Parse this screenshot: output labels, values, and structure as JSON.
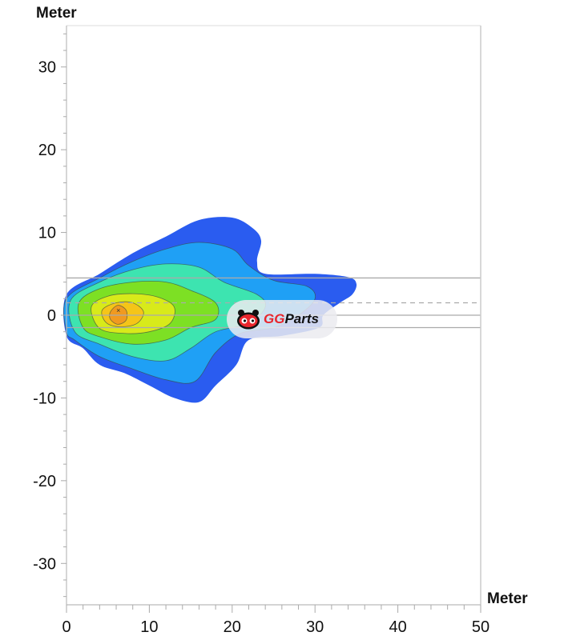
{
  "chart_data": {
    "type": "heatmap",
    "title": "",
    "xlabel": "Meter",
    "ylabel": "Meter",
    "xlim": [
      0,
      50
    ],
    "ylim": [
      -35,
      35
    ],
    "xticks": [
      "0",
      "10",
      "20",
      "30",
      "40",
      "50"
    ],
    "yticks": [
      "30",
      "20",
      "10",
      "0",
      "-10",
      "-20",
      "-30"
    ],
    "grid": false,
    "reference_lines": [
      {
        "y": 4.5,
        "style": "solid"
      },
      {
        "y": 1.5,
        "style": "dashed"
      },
      {
        "y": 0,
        "style": "solid"
      },
      {
        "y": -1.5,
        "style": "solid"
      }
    ],
    "contours": [
      {
        "level": 1,
        "color": "#2a5cf0",
        "points": [
          [
            0,
            2.5
          ],
          [
            4,
            5
          ],
          [
            8,
            7.5
          ],
          [
            12,
            9.5
          ],
          [
            16,
            11.5
          ],
          [
            20,
            11.8
          ],
          [
            22.5,
            10.5
          ],
          [
            23.5,
            9
          ],
          [
            23,
            6.5
          ],
          [
            24,
            5
          ],
          [
            30,
            5
          ],
          [
            34,
            4.6
          ],
          [
            35,
            3.8
          ],
          [
            34.5,
            2.5
          ],
          [
            33,
            1.5
          ],
          [
            31,
            0
          ],
          [
            30.5,
            -1.5
          ],
          [
            26,
            -2.5
          ],
          [
            22,
            -3
          ],
          [
            20.5,
            -6
          ],
          [
            18,
            -8.5
          ],
          [
            16,
            -10.5
          ],
          [
            13,
            -10
          ],
          [
            10,
            -8.5
          ],
          [
            7,
            -7
          ],
          [
            4,
            -6
          ],
          [
            2,
            -4
          ],
          [
            0,
            -2.5
          ]
        ]
      },
      {
        "level": 2,
        "color": "#1fa0f5",
        "points": [
          [
            0,
            2
          ],
          [
            4,
            4.5
          ],
          [
            8,
            6.5
          ],
          [
            12,
            8
          ],
          [
            16,
            8.8
          ],
          [
            20,
            8
          ],
          [
            22,
            6
          ],
          [
            25,
            4.2
          ],
          [
            29,
            3.5
          ],
          [
            30,
            2
          ],
          [
            28,
            0
          ],
          [
            25,
            -1.5
          ],
          [
            21,
            -2.2
          ],
          [
            18,
            -4.5
          ],
          [
            15.5,
            -8
          ],
          [
            12,
            -7.8
          ],
          [
            8,
            -6.5
          ],
          [
            4,
            -5
          ],
          [
            1,
            -3
          ],
          [
            0,
            -2
          ]
        ]
      },
      {
        "level": 3,
        "color": "#3de4b0",
        "points": [
          [
            0.5,
            1.8
          ],
          [
            4,
            4
          ],
          [
            8,
            5.5
          ],
          [
            12,
            6.2
          ],
          [
            16,
            5.8
          ],
          [
            19,
            4
          ],
          [
            23,
            2.5
          ],
          [
            24,
            1
          ],
          [
            22,
            -1
          ],
          [
            18,
            -2
          ],
          [
            15,
            -4
          ],
          [
            12,
            -5.5
          ],
          [
            8,
            -5
          ],
          [
            4,
            -3.5
          ],
          [
            1,
            -2
          ]
        ]
      },
      {
        "level": 4,
        "color": "#7de024",
        "points": [
          [
            1.5,
            1.5
          ],
          [
            4,
            3.2
          ],
          [
            8,
            4
          ],
          [
            12,
            4
          ],
          [
            15,
            3
          ],
          [
            18,
            1.5
          ],
          [
            18,
            -0.5
          ],
          [
            15,
            -1.5
          ],
          [
            12,
            -3
          ],
          [
            8,
            -3.5
          ],
          [
            4,
            -2.6
          ],
          [
            2,
            -1.5
          ]
        ]
      },
      {
        "level": 5,
        "color": "#d8ea1a",
        "points": [
          [
            3,
            1
          ],
          [
            5,
            2.3
          ],
          [
            8,
            2.6
          ],
          [
            11,
            2.2
          ],
          [
            13,
            1
          ],
          [
            12.5,
            -1
          ],
          [
            10,
            -2
          ],
          [
            7,
            -2.2
          ],
          [
            4,
            -1.6
          ]
        ]
      },
      {
        "level": 6,
        "color": "#f5c518",
        "points": [
          [
            4.3,
            0.6
          ],
          [
            6,
            1.5
          ],
          [
            8,
            1.5
          ],
          [
            9.3,
            0.4
          ],
          [
            8.5,
            -1
          ],
          [
            6.5,
            -1.4
          ],
          [
            4.8,
            -0.9
          ]
        ]
      },
      {
        "level": 7,
        "color": "#f09a20",
        "points": [
          [
            5.3,
            0.4
          ],
          [
            6.2,
            1.2
          ],
          [
            7.2,
            0.6
          ],
          [
            7.2,
            -0.6
          ],
          [
            6.2,
            -1.1
          ],
          [
            5.3,
            -0.5
          ]
        ]
      }
    ],
    "peak": [
      6.3,
      0.6
    ]
  },
  "watermark": {
    "brand_red": "GG",
    "brand_dark": "Parts",
    "color": "#e8262d"
  }
}
